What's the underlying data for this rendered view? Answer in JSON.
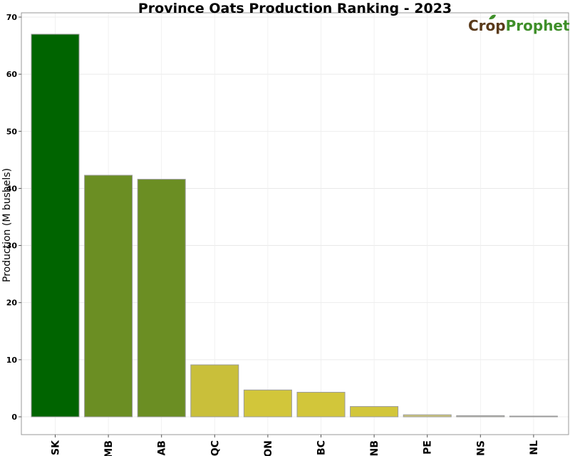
{
  "chart_data": {
    "type": "bar",
    "title": "Province Oats Production Ranking - 2023",
    "xlabel": "",
    "ylabel": "Production (M bushels)",
    "categories": [
      "SK",
      "MB",
      "AB",
      "QC",
      "ON",
      "BC",
      "NB",
      "PE",
      "NS",
      "NL"
    ],
    "values": [
      67.0,
      42.3,
      41.6,
      9.1,
      4.7,
      4.3,
      1.8,
      0.35,
      0.2,
      0.05
    ],
    "colors": [
      "#006400",
      "#6b8e23",
      "#6b8e23",
      "#c9bf3a",
      "#d2c63a",
      "#d2c63a",
      "#d2c63a",
      "#cfc877",
      "#b8b8b0",
      "#c2c2c2"
    ],
    "ylim": [
      0,
      70
    ],
    "yticks": [
      0,
      10,
      20,
      30,
      40,
      50,
      60,
      70
    ],
    "grid": true,
    "legend": "none"
  },
  "logo": {
    "part1": "Crop",
    "part2": "Prophet"
  }
}
